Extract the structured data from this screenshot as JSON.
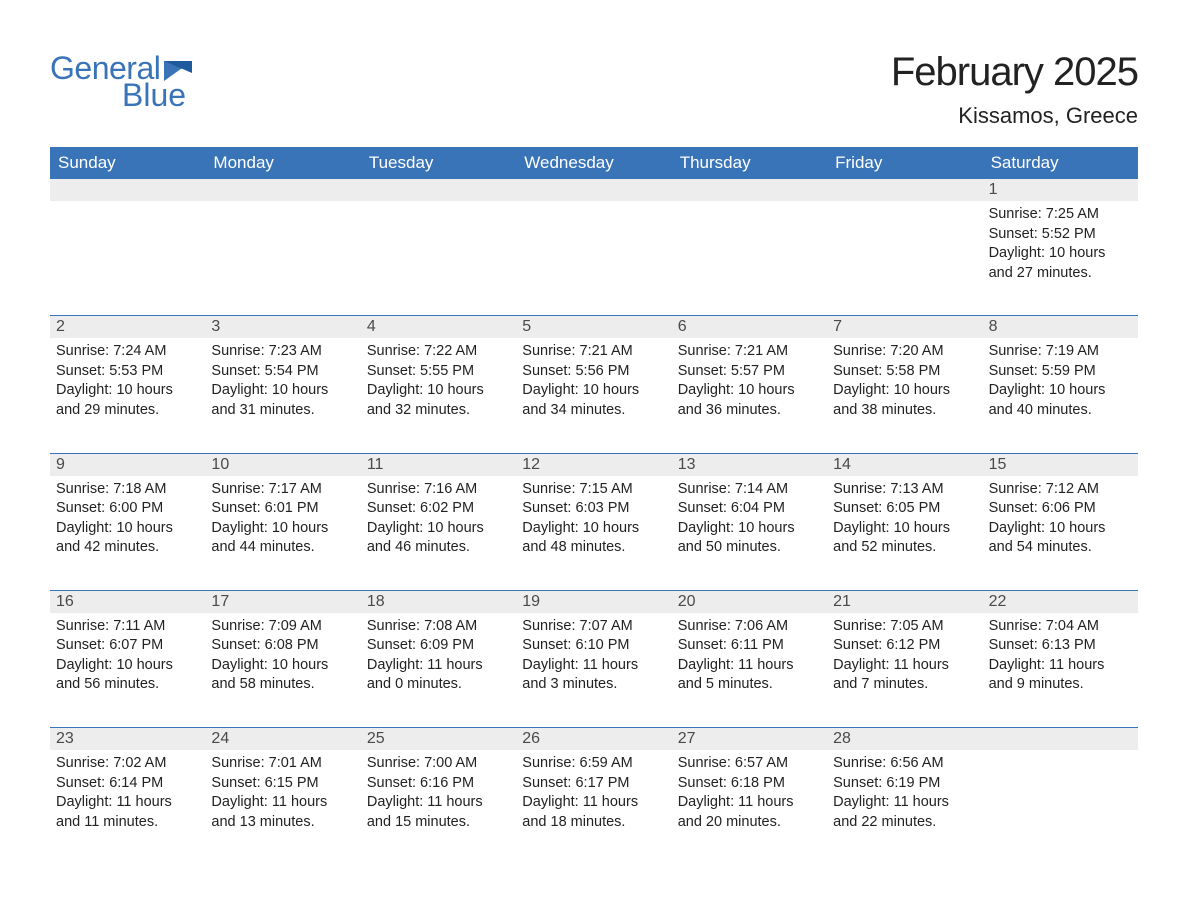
{
  "logo": {
    "text1": "General",
    "text2": "Blue",
    "color": "#3a74b8"
  },
  "title": "February 2025",
  "location": "Kissamos, Greece",
  "colors": {
    "header_bg": "#3a74b8",
    "header_text": "#ffffff",
    "daynum_bg": "#ededed",
    "text": "#222222",
    "page_bg": "#ffffff"
  },
  "dayHeaders": [
    "Sunday",
    "Monday",
    "Tuesday",
    "Wednesday",
    "Thursday",
    "Friday",
    "Saturday"
  ],
  "labels": {
    "sunrise": "Sunrise",
    "sunset": "Sunset",
    "daylight": "Daylight"
  },
  "weeks": [
    [
      null,
      null,
      null,
      null,
      null,
      null,
      {
        "n": "1",
        "sunrise": "7:25 AM",
        "sunset": "5:52 PM",
        "daylight": "10 hours and 27 minutes."
      }
    ],
    [
      {
        "n": "2",
        "sunrise": "7:24 AM",
        "sunset": "5:53 PM",
        "daylight": "10 hours and 29 minutes."
      },
      {
        "n": "3",
        "sunrise": "7:23 AM",
        "sunset": "5:54 PM",
        "daylight": "10 hours and 31 minutes."
      },
      {
        "n": "4",
        "sunrise": "7:22 AM",
        "sunset": "5:55 PM",
        "daylight": "10 hours and 32 minutes."
      },
      {
        "n": "5",
        "sunrise": "7:21 AM",
        "sunset": "5:56 PM",
        "daylight": "10 hours and 34 minutes."
      },
      {
        "n": "6",
        "sunrise": "7:21 AM",
        "sunset": "5:57 PM",
        "daylight": "10 hours and 36 minutes."
      },
      {
        "n": "7",
        "sunrise": "7:20 AM",
        "sunset": "5:58 PM",
        "daylight": "10 hours and 38 minutes."
      },
      {
        "n": "8",
        "sunrise": "7:19 AM",
        "sunset": "5:59 PM",
        "daylight": "10 hours and 40 minutes."
      }
    ],
    [
      {
        "n": "9",
        "sunrise": "7:18 AM",
        "sunset": "6:00 PM",
        "daylight": "10 hours and 42 minutes."
      },
      {
        "n": "10",
        "sunrise": "7:17 AM",
        "sunset": "6:01 PM",
        "daylight": "10 hours and 44 minutes."
      },
      {
        "n": "11",
        "sunrise": "7:16 AM",
        "sunset": "6:02 PM",
        "daylight": "10 hours and 46 minutes."
      },
      {
        "n": "12",
        "sunrise": "7:15 AM",
        "sunset": "6:03 PM",
        "daylight": "10 hours and 48 minutes."
      },
      {
        "n": "13",
        "sunrise": "7:14 AM",
        "sunset": "6:04 PM",
        "daylight": "10 hours and 50 minutes."
      },
      {
        "n": "14",
        "sunrise": "7:13 AM",
        "sunset": "6:05 PM",
        "daylight": "10 hours and 52 minutes."
      },
      {
        "n": "15",
        "sunrise": "7:12 AM",
        "sunset": "6:06 PM",
        "daylight": "10 hours and 54 minutes."
      }
    ],
    [
      {
        "n": "16",
        "sunrise": "7:11 AM",
        "sunset": "6:07 PM",
        "daylight": "10 hours and 56 minutes."
      },
      {
        "n": "17",
        "sunrise": "7:09 AM",
        "sunset": "6:08 PM",
        "daylight": "10 hours and 58 minutes."
      },
      {
        "n": "18",
        "sunrise": "7:08 AM",
        "sunset": "6:09 PM",
        "daylight": "11 hours and 0 minutes."
      },
      {
        "n": "19",
        "sunrise": "7:07 AM",
        "sunset": "6:10 PM",
        "daylight": "11 hours and 3 minutes."
      },
      {
        "n": "20",
        "sunrise": "7:06 AM",
        "sunset": "6:11 PM",
        "daylight": "11 hours and 5 minutes."
      },
      {
        "n": "21",
        "sunrise": "7:05 AM",
        "sunset": "6:12 PM",
        "daylight": "11 hours and 7 minutes."
      },
      {
        "n": "22",
        "sunrise": "7:04 AM",
        "sunset": "6:13 PM",
        "daylight": "11 hours and 9 minutes."
      }
    ],
    [
      {
        "n": "23",
        "sunrise": "7:02 AM",
        "sunset": "6:14 PM",
        "daylight": "11 hours and 11 minutes."
      },
      {
        "n": "24",
        "sunrise": "7:01 AM",
        "sunset": "6:15 PM",
        "daylight": "11 hours and 13 minutes."
      },
      {
        "n": "25",
        "sunrise": "7:00 AM",
        "sunset": "6:16 PM",
        "daylight": "11 hours and 15 minutes."
      },
      {
        "n": "26",
        "sunrise": "6:59 AM",
        "sunset": "6:17 PM",
        "daylight": "11 hours and 18 minutes."
      },
      {
        "n": "27",
        "sunrise": "6:57 AM",
        "sunset": "6:18 PM",
        "daylight": "11 hours and 20 minutes."
      },
      {
        "n": "28",
        "sunrise": "6:56 AM",
        "sunset": "6:19 PM",
        "daylight": "11 hours and 22 minutes."
      },
      null
    ]
  ]
}
